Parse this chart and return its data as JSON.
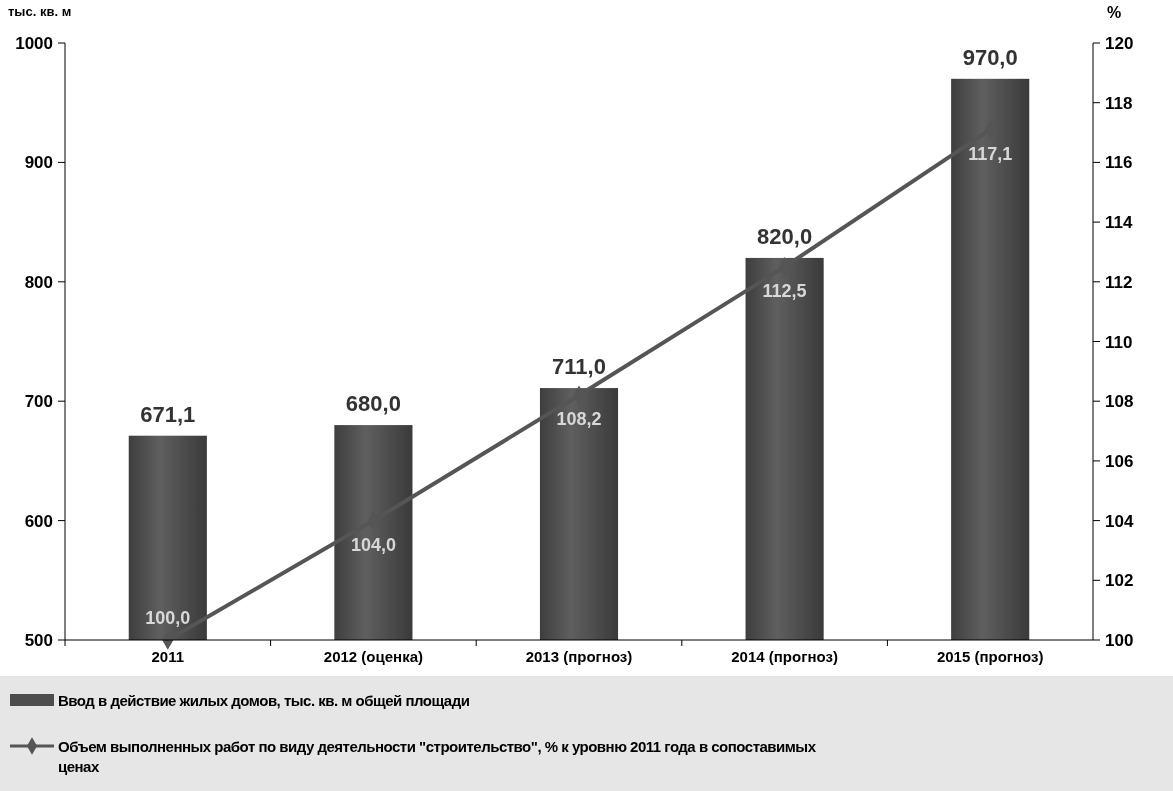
{
  "chart_data": {
    "type": "bar",
    "ylabel": "тыс. кв. м",
    "y2label": "%",
    "categories": [
      "2011",
      "2012 (оценка)",
      "2013 (прогноз)",
      "2014 (прогноз)",
      "2015 (прогноз)"
    ],
    "series": [
      {
        "name": "Ввод в действие жилых домов, тыс. кв. м общей площади",
        "color": "#4d4d4d",
        "values": [
          671.1,
          680.0,
          711.0,
          820.0,
          970.0
        ],
        "value_labels": [
          "671,1",
          "680,0",
          "711,0",
          "820,0",
          "970,0"
        ]
      },
      {
        "name": "Объем выполненных работ по виду деятельности \"строительство\", % к уровню 2011 года в сопоставимых ценах",
        "type": "line",
        "axis": "y2",
        "color": "#555555",
        "values": [
          100.0,
          104.0,
          108.2,
          112.5,
          117.1
        ],
        "value_labels": [
          "100,0",
          "104,0",
          "108,2",
          "112,5",
          "117,1"
        ]
      }
    ],
    "ylim": [
      500,
      1000
    ],
    "yticks": [
      500,
      600,
      700,
      800,
      900,
      1000
    ],
    "y2lim": [
      100,
      120
    ],
    "y2ticks": [
      100,
      102,
      104,
      106,
      108,
      110,
      112,
      114,
      116,
      118,
      120
    ],
    "legend": "bottom",
    "marker": "diamond",
    "grid": false
  }
}
